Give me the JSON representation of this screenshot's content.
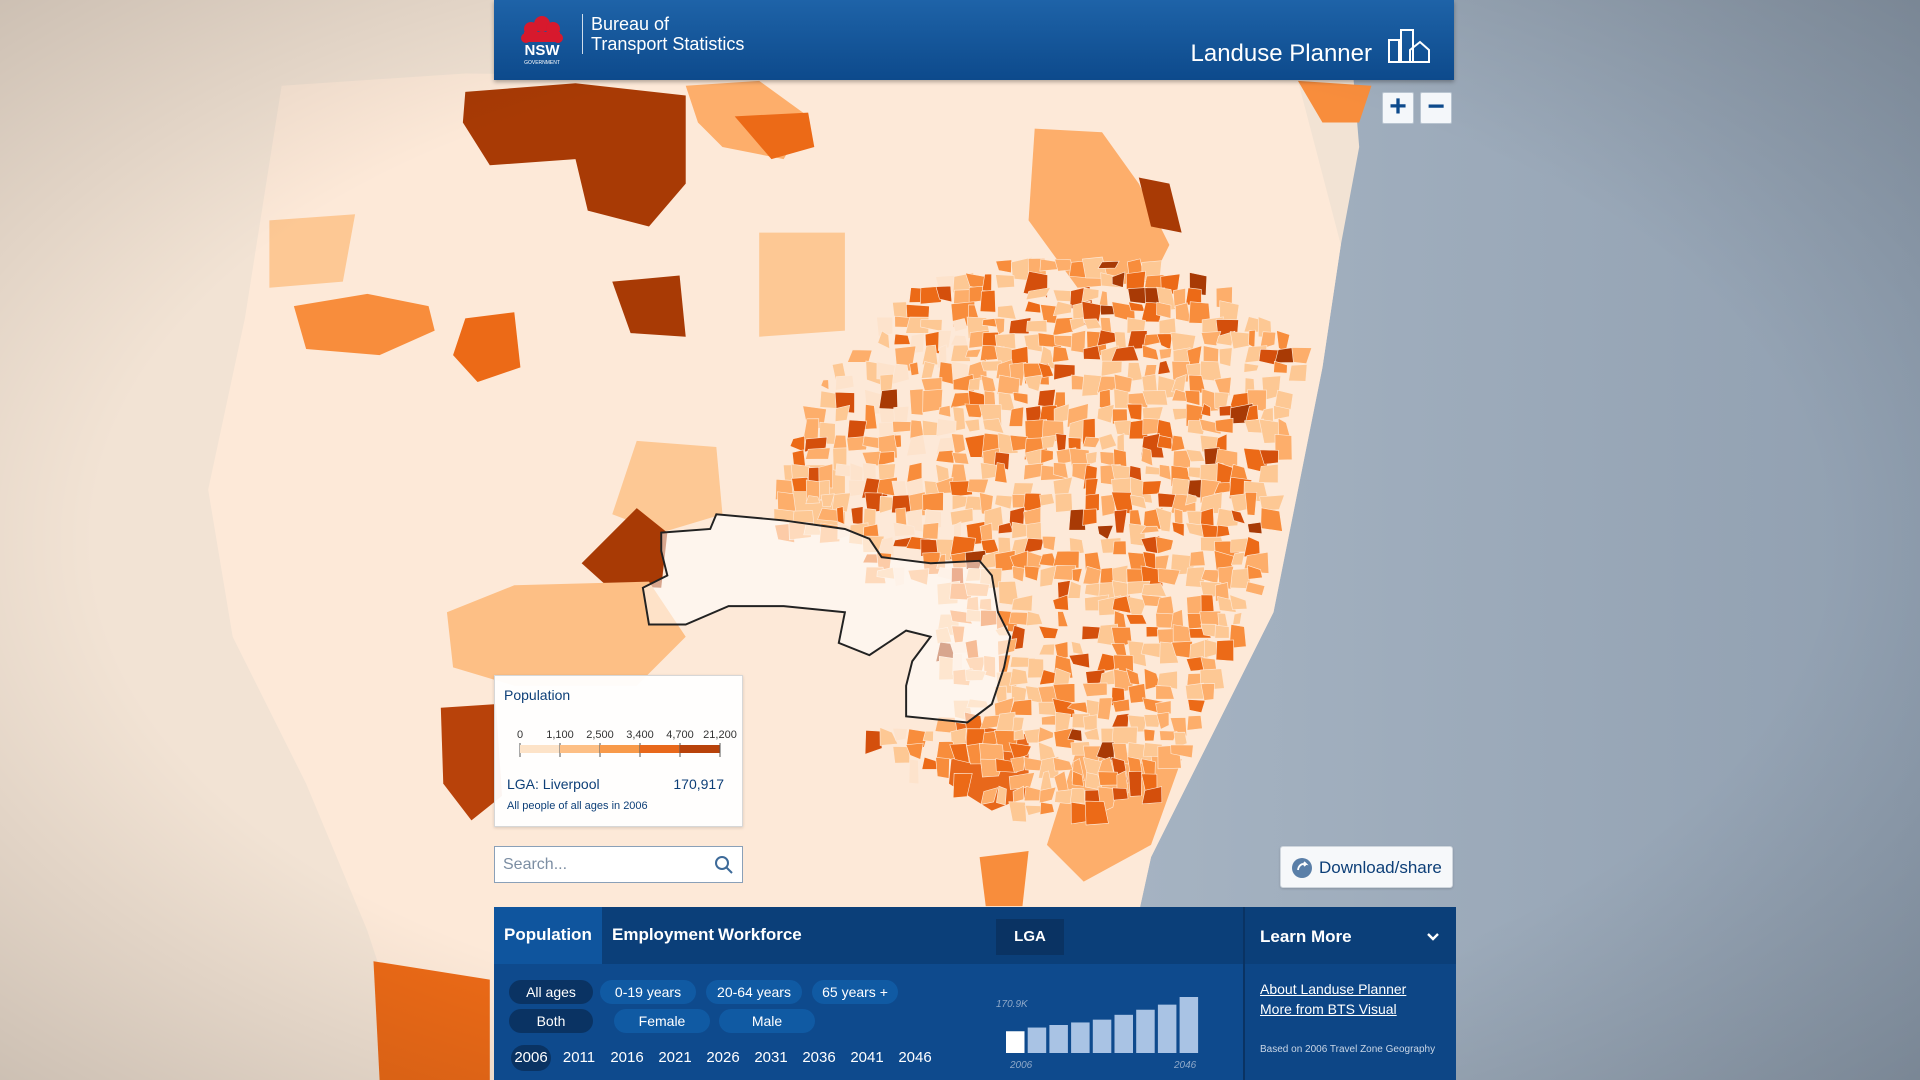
{
  "header": {
    "logo": "NSW",
    "logo_sub": "GOVERNMENT",
    "agency_line1": "Bureau of",
    "agency_line2": "Transport Statistics",
    "app_title": "Landuse Planner"
  },
  "map_controls": {
    "zoom_in": "+",
    "zoom_out": "−"
  },
  "legend": {
    "title": "Population",
    "breaks": [
      "0",
      "1,100",
      "2,500",
      "3,400",
      "4,700",
      "21,200"
    ],
    "area_label": "LGA: Liverpool",
    "area_value": "170,917",
    "caption": "All people of all ages in 2006"
  },
  "search": {
    "placeholder": "Search..."
  },
  "download_button": "Download/share",
  "panel": {
    "tabs": [
      "Population",
      "Employment",
      "Workforce"
    ],
    "geography_button": "LGA",
    "age_filters": [
      "All ages",
      "0-19 years",
      "20-64 years",
      "65 years +"
    ],
    "sex_filters": [
      "Both",
      "Female",
      "Male"
    ],
    "years": [
      "2006",
      "2011",
      "2016",
      "2021",
      "2026",
      "2031",
      "2036",
      "2041",
      "2046"
    ],
    "chart": {
      "value_label": "170.9K",
      "values": [
        170.9,
        200,
        220,
        240,
        262,
        300,
        340,
        380,
        440
      ],
      "start_label": "2006",
      "end_label": "2046"
    },
    "learn_more": {
      "title": "Learn More",
      "links": [
        "About Landuse Planner",
        "More from BTS Visual"
      ],
      "note": "Based on 2006 Travel Zone Geography"
    }
  }
}
